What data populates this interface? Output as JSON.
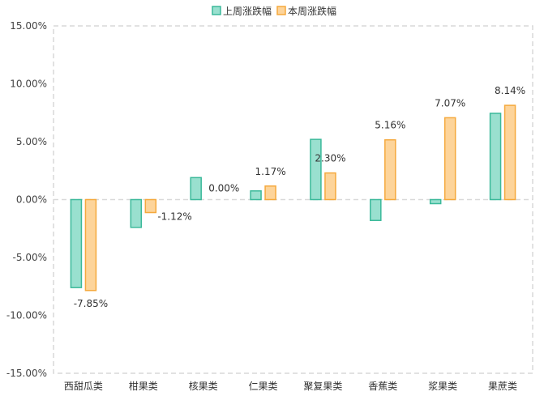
{
  "chart_data": {
    "type": "bar",
    "categories": [
      "西甜瓜类",
      "柑果类",
      "核果类",
      "仁果类",
      "聚复果类",
      "香蕉类",
      "浆果类",
      "果蔗类"
    ],
    "series": [
      {
        "name": "上周涨跌幅",
        "values": [
          -7.6,
          -2.4,
          1.9,
          0.75,
          5.2,
          -1.8,
          -0.35,
          7.45
        ],
        "color": "#99E0CF",
        "stroke": "#3BB99A",
        "show_labels": false
      },
      {
        "name": "本周涨跌幅",
        "values": [
          -7.85,
          -1.12,
          0.0,
          1.17,
          2.3,
          5.16,
          7.07,
          8.14
        ],
        "color": "#FDD49A",
        "stroke": "#F5A93D",
        "show_labels": true
      }
    ],
    "data_labels": [
      "-7.85%",
      "-1.12%",
      "0.00%",
      "1.17%",
      "2.30%",
      "5.16%",
      "7.07%",
      "8.14%"
    ],
    "y_ticks": [
      "15.00%",
      "10.00%",
      "5.00%",
      "0.00%",
      "-5.00%",
      "-10.00%",
      "-15.00%"
    ],
    "ylim": [
      -15,
      15
    ],
    "grid": false,
    "legend_position": "top-center",
    "title": "",
    "xlabel": "",
    "ylabel": ""
  }
}
